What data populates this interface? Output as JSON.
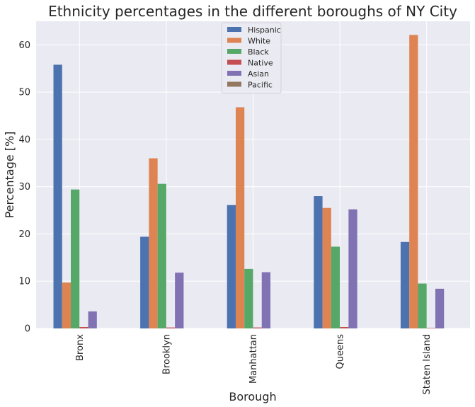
{
  "chart_data": {
    "type": "bar",
    "title": "Ethnicity percentages in the different boroughs of NY City",
    "xlabel": "Borough",
    "ylabel": "Percentage [%]",
    "ylim": [
      0,
      65
    ],
    "yticks": [
      0,
      10,
      20,
      30,
      40,
      50,
      60
    ],
    "grid": true,
    "legend_position": "top-center",
    "categories": [
      "Bronx",
      "Brooklyn",
      "Manhattan",
      "Queens",
      "Staten Island"
    ],
    "series": [
      {
        "name": "Hispanic",
        "color": "#4c72b0",
        "values": [
          55.8,
          19.4,
          26.1,
          28.0,
          18.3
        ]
      },
      {
        "name": "White",
        "color": "#dd8452",
        "values": [
          9.7,
          36.0,
          46.8,
          25.5,
          62.1
        ]
      },
      {
        "name": "Black",
        "color": "#55a868",
        "values": [
          29.4,
          30.6,
          12.6,
          17.3,
          9.5
        ]
      },
      {
        "name": "Native",
        "color": "#c44e52",
        "values": [
          0.3,
          0.2,
          0.2,
          0.3,
          0.1
        ]
      },
      {
        "name": "Asian",
        "color": "#8172b3",
        "values": [
          3.6,
          11.8,
          11.9,
          25.2,
          8.4
        ]
      },
      {
        "name": "Pacific",
        "color": "#937860",
        "values": [
          0.0,
          0.0,
          0.0,
          0.0,
          0.0
        ]
      }
    ]
  }
}
